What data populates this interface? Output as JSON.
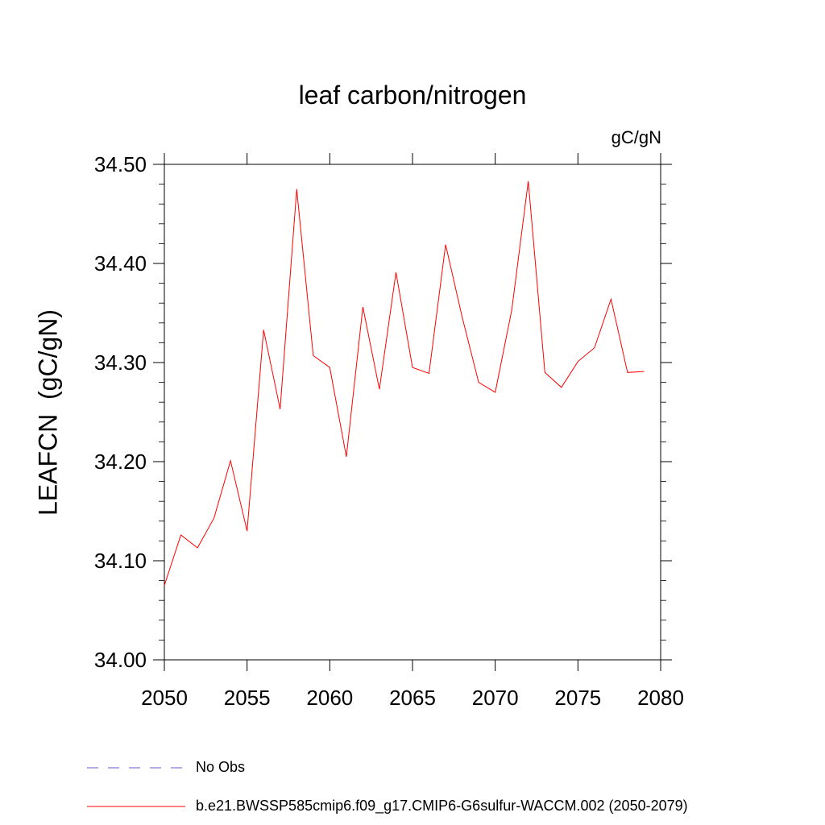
{
  "chart_data": {
    "type": "line",
    "title": "leaf carbon/nitrogen",
    "units_label": "gC/gN",
    "ylabel": "LEAFCN  (gC/gN)",
    "xlabel": "",
    "xlim": [
      2050,
      2080
    ],
    "ylim": [
      34.0,
      34.5
    ],
    "x_ticks": [
      "2050",
      "2055",
      "2060",
      "2065",
      "2070",
      "2075",
      "2080"
    ],
    "y_ticks": [
      "34.00",
      "34.10",
      "34.20",
      "34.30",
      "34.40",
      "34.50"
    ],
    "grid": false,
    "legend_position": "bottom",
    "series": [
      {
        "name": "b.e21.BWSSP585cmip6.f09_g17.CMIP6-G6sulfur-WACCM.002 (2050-2079)",
        "color": "#ff0000",
        "style": "solid",
        "x": [
          2050,
          2051,
          2052,
          2053,
          2054,
          2055,
          2056,
          2057,
          2058,
          2059,
          2060,
          2061,
          2062,
          2063,
          2064,
          2065,
          2066,
          2067,
          2068,
          2069,
          2070,
          2071,
          2072,
          2073,
          2074,
          2075,
          2076,
          2077,
          2078,
          2079
        ],
        "values": [
          34.075,
          34.126,
          34.113,
          34.143,
          34.201,
          34.13,
          34.333,
          34.253,
          34.475,
          34.307,
          34.295,
          34.205,
          34.356,
          34.273,
          34.391,
          34.295,
          34.289,
          34.419,
          34.346,
          34.28,
          34.27,
          34.353,
          34.483,
          34.29,
          34.275,
          34.301,
          34.315,
          34.364,
          34.29,
          34.291
        ]
      }
    ],
    "legend": [
      {
        "label": "No Obs",
        "color": "#6a5acd",
        "style": "dashed"
      },
      {
        "label": "b.e21.BWSSP585cmip6.f09_g17.CMIP6-G6sulfur-WACCM.002 (2050-2079)",
        "color": "#ff0000",
        "style": "solid"
      }
    ]
  }
}
